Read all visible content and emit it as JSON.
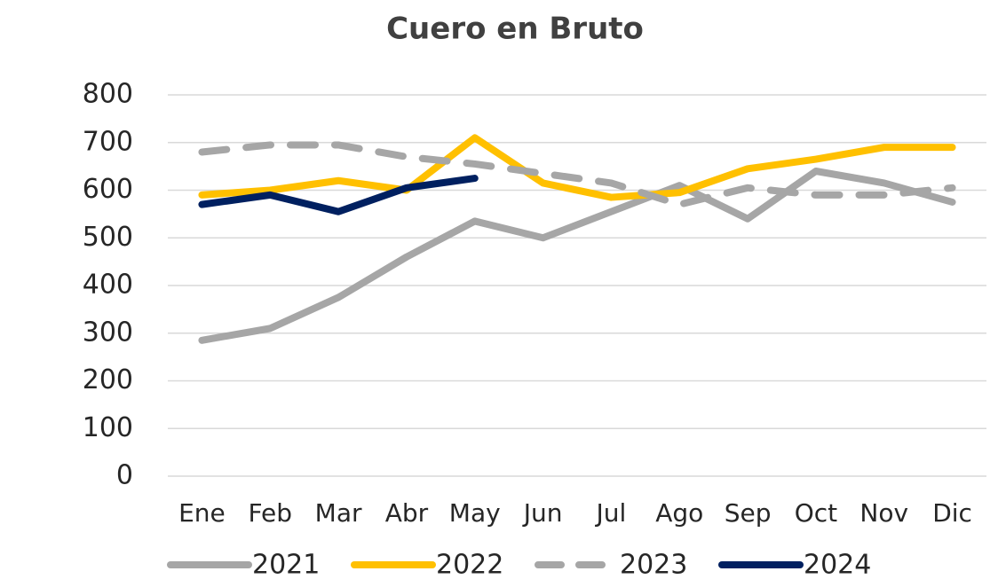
{
  "chart_data": {
    "type": "line",
    "title": "Cuero en Bruto",
    "categories": [
      "Ene",
      "Feb",
      "Mar",
      "Abr",
      "May",
      "Jun",
      "Jul",
      "Ago",
      "Sep",
      "Oct",
      "Nov",
      "Dic"
    ],
    "series": [
      {
        "name": "2021",
        "color": "#a6a6a6",
        "dashed": false,
        "values": [
          285,
          310,
          375,
          460,
          535,
          500,
          555,
          610,
          540,
          640,
          615,
          575
        ]
      },
      {
        "name": "2022",
        "color": "#ffc000",
        "dashed": false,
        "values": [
          590,
          600,
          620,
          600,
          710,
          615,
          585,
          595,
          645,
          665,
          690,
          690
        ]
      },
      {
        "name": "2023",
        "color": "#a6a6a6",
        "dashed": true,
        "values": [
          680,
          695,
          695,
          670,
          655,
          635,
          615,
          570,
          605,
          590,
          590,
          605
        ]
      },
      {
        "name": "2024",
        "color": "#002060",
        "dashed": false,
        "values": [
          570,
          590,
          555,
          605,
          625,
          null,
          null,
          null,
          null,
          null,
          null,
          null
        ]
      }
    ],
    "ylim": [
      0,
      800
    ],
    "yticks": [
      0,
      100,
      200,
      300,
      400,
      500,
      600,
      700,
      800
    ],
    "grid": true,
    "legend": "bottom"
  }
}
